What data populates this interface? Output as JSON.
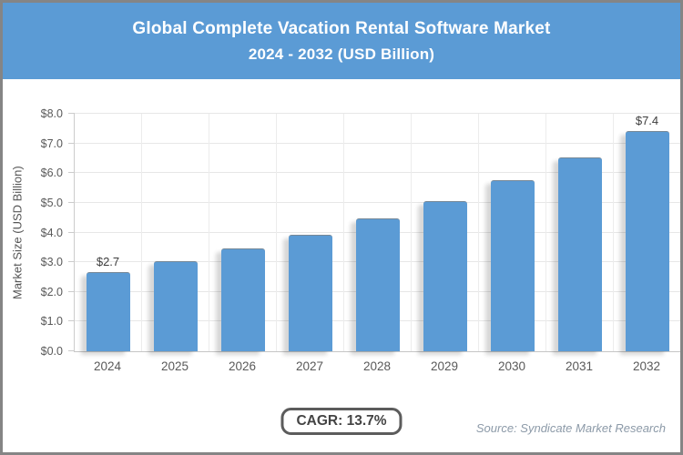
{
  "header": {
    "title_line1": "Global Complete Vacation Rental Software Market",
    "title_line2": "2024 - 2032 (USD Billion)"
  },
  "colors": {
    "header_bg": "#5B9BD5",
    "bar_fill": "#5B9BD5",
    "border_gray": "#858585",
    "axis_text": "#595959",
    "source_text": "#8C9AA8"
  },
  "chart_data": {
    "type": "bar",
    "title": "Global Complete Vacation Rental Software Market 2024 - 2032 (USD Billion)",
    "categories": [
      "2024",
      "2025",
      "2026",
      "2027",
      "2028",
      "2029",
      "2030",
      "2031",
      "2032"
    ],
    "values": [
      2.65,
      3.0,
      3.43,
      3.9,
      4.43,
      5.04,
      5.73,
      6.5,
      7.4
    ],
    "value_labels": [
      "$2.7",
      "",
      "",
      "",
      "",
      "",
      "",
      "",
      "$7.4"
    ],
    "xlabel": "",
    "ylabel": "Market Size (USD Billion)",
    "ylim": [
      0,
      8
    ],
    "ytick_labels": [
      "$0.0",
      "$1.0",
      "$2.0",
      "$3.0",
      "$4.0",
      "$5.0",
      "$6.0",
      "$7.0",
      "$8.0"
    ],
    "grid": true,
    "legend": "none"
  },
  "footer": {
    "cagr_label": "CAGR: 13.7%",
    "source_label": "Source: Syndicate Market Research"
  }
}
